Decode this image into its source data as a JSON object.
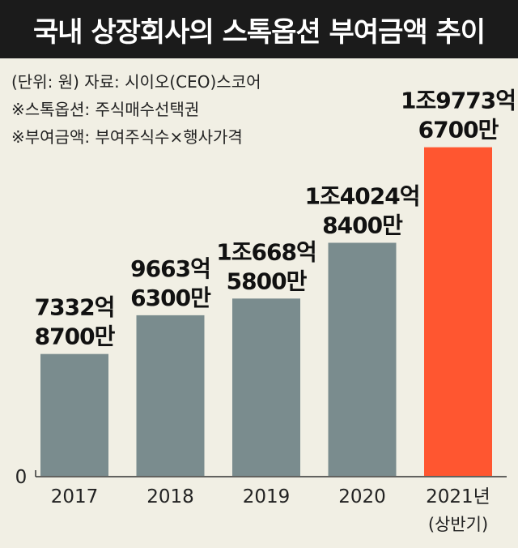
{
  "header": {
    "title": "국내 상장회사의 스톡옵션 부여금액 추이"
  },
  "notes": {
    "unit_source": "(단위: 원)  자료: 시이오(CEO)스코어",
    "note1": "※스톡옵션: 주식매수선택권",
    "note2": "※부여금액: 부여주식수×행사가격"
  },
  "colors": {
    "bar": "#7a8c8e",
    "highlight": "#ff5630",
    "title_bg": "#1b1b1b",
    "background": "#f1efe4"
  },
  "chart_data": {
    "type": "bar",
    "title": "국내 상장회사의 스톡옵션 부여금액 추이",
    "unit": "원",
    "categories": [
      "2017",
      "2018",
      "2019",
      "2020",
      "2021년"
    ],
    "category_sublabels": [
      "",
      "",
      "",
      "",
      "(상반기)"
    ],
    "values": [
      733287000000,
      966363000000,
      1066858000000,
      1402484000000,
      1977367000000
    ],
    "value_labels": [
      [
        "7332억",
        "8700만"
      ],
      [
        "9663억",
        "6300만"
      ],
      [
        "1조668억",
        "5800만"
      ],
      [
        "1조4024억",
        "8400만"
      ],
      [
        "1조9773억",
        "6700만"
      ]
    ],
    "highlight_index": 4,
    "yaxis_label": "0",
    "ylim": [
      0,
      2000000000000
    ],
    "grid": false
  }
}
